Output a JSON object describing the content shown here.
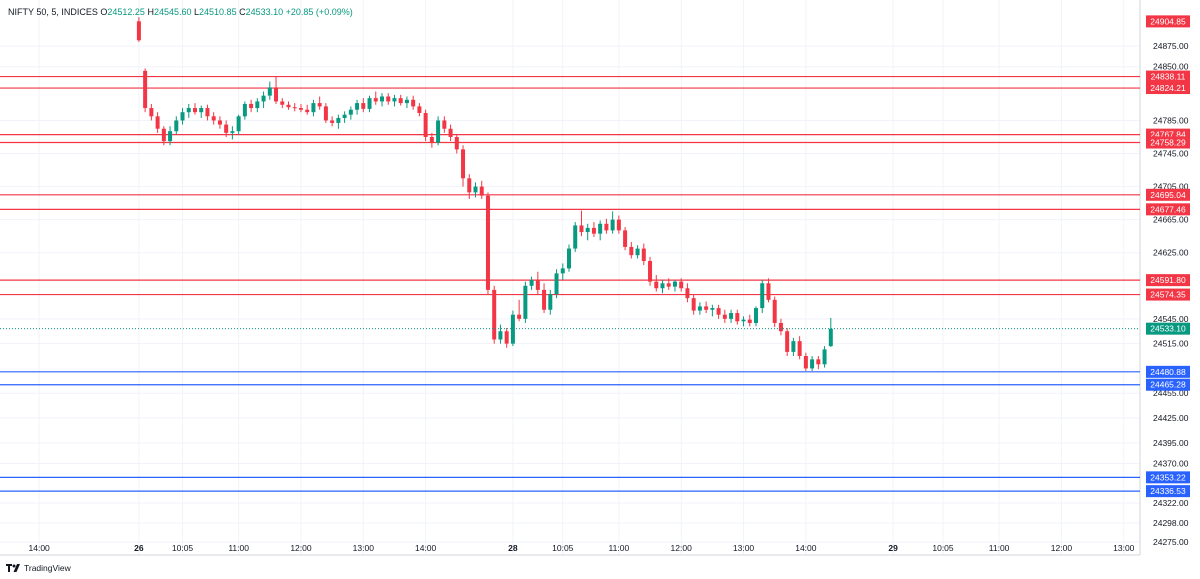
{
  "header": {
    "symbol": "NIFTY 50, 5, INDICES",
    "open_label": "O",
    "open": "24512.25",
    "high_label": "H",
    "high": "24545.60",
    "low_label": "L",
    "low": "24510.85",
    "close_label": "C",
    "close": "24533.10",
    "change": "+20.85 (+0.09%)"
  },
  "footer": {
    "brand": "TradingView",
    "logo_icon": "tradingview-logo-icon"
  },
  "colors": {
    "up": "#089981",
    "down": "#f23645",
    "resistance": "#f23645",
    "support": "#2962ff",
    "grid": "#f0f3fa",
    "axis_text": "#131722",
    "price_line": "#089981"
  },
  "chart_data": {
    "type": "candlestick",
    "ylim": [
      24275,
      24915
    ],
    "xlim": [
      0,
      180
    ],
    "y_ticks": [
      24875,
      24850,
      24785,
      24745,
      24705,
      24665,
      24625,
      24545,
      24515,
      24455,
      24425,
      24395,
      24370,
      24322,
      24298,
      24275
    ],
    "x_ticks": [
      {
        "i": 5,
        "label": "14:00"
      },
      {
        "i": 21,
        "label": "26"
      },
      {
        "i": 28,
        "label": "10:05"
      },
      {
        "i": 37,
        "label": "11:00"
      },
      {
        "i": 47,
        "label": "12:00"
      },
      {
        "i": 57,
        "label": "13:00"
      },
      {
        "i": 67,
        "label": "14:00"
      },
      {
        "i": 81,
        "label": "28"
      },
      {
        "i": 89,
        "label": "10:05"
      },
      {
        "i": 98,
        "label": "11:00"
      },
      {
        "i": 108,
        "label": "12:00"
      },
      {
        "i": 118,
        "label": "13:00"
      },
      {
        "i": 128,
        "label": "14:00"
      },
      {
        "i": 142,
        "label": "29"
      },
      {
        "i": 150,
        "label": "10:05"
      },
      {
        "i": 159,
        "label": "11:00"
      },
      {
        "i": 169,
        "label": "12:00"
      },
      {
        "i": 179,
        "label": "13:00"
      }
    ],
    "levels": [
      {
        "value": 24838.11,
        "label": "24838.11",
        "kind": "resistance"
      },
      {
        "value": 24824.21,
        "label": "24824.21",
        "kind": "resistance"
      },
      {
        "value": 24767.84,
        "label": "24767.84",
        "kind": "resistance"
      },
      {
        "value": 24758.29,
        "label": "24758.29",
        "kind": "resistance"
      },
      {
        "value": 24695.04,
        "label": "24695.04",
        "kind": "resistance"
      },
      {
        "value": 24677.46,
        "label": "24677.46",
        "kind": "resistance"
      },
      {
        "value": 24591.8,
        "label": "24591.80",
        "kind": "resistance"
      },
      {
        "value": 24574.35,
        "label": "24574.35",
        "kind": "resistance"
      },
      {
        "value": 24480.88,
        "label": "24480.88",
        "kind": "support"
      },
      {
        "value": 24465.28,
        "label": "24465.28",
        "kind": "support"
      },
      {
        "value": 24353.22,
        "label": "24353.22",
        "kind": "support"
      },
      {
        "value": 24336.53,
        "label": "24336.53",
        "kind": "support"
      }
    ],
    "top_label": {
      "value": 24904.85,
      "label": "24904.85"
    },
    "last_price": {
      "value": 24533.1,
      "label": "24533.10"
    },
    "candles": [
      {
        "i": 21,
        "o": 24905,
        "h": 24910,
        "l": 24880,
        "c": 24882
      },
      {
        "i": 22,
        "o": 24845,
        "h": 24848,
        "l": 24795,
        "c": 24800
      },
      {
        "i": 23,
        "o": 24800,
        "h": 24805,
        "l": 24785,
        "c": 24790
      },
      {
        "i": 24,
        "o": 24790,
        "h": 24795,
        "l": 24770,
        "c": 24775
      },
      {
        "i": 25,
        "o": 24775,
        "h": 24778,
        "l": 24755,
        "c": 24760
      },
      {
        "i": 26,
        "o": 24760,
        "h": 24778,
        "l": 24755,
        "c": 24772
      },
      {
        "i": 27,
        "o": 24772,
        "h": 24790,
        "l": 24768,
        "c": 24785
      },
      {
        "i": 28,
        "o": 24785,
        "h": 24800,
        "l": 24780,
        "c": 24795
      },
      {
        "i": 29,
        "o": 24795,
        "h": 24805,
        "l": 24788,
        "c": 24800
      },
      {
        "i": 30,
        "o": 24800,
        "h": 24806,
        "l": 24792,
        "c": 24795
      },
      {
        "i": 31,
        "o": 24795,
        "h": 24803,
        "l": 24788,
        "c": 24800
      },
      {
        "i": 32,
        "o": 24800,
        "h": 24804,
        "l": 24785,
        "c": 24790
      },
      {
        "i": 33,
        "o": 24790,
        "h": 24795,
        "l": 24780,
        "c": 24785
      },
      {
        "i": 34,
        "o": 24785,
        "h": 24790,
        "l": 24775,
        "c": 24780
      },
      {
        "i": 35,
        "o": 24780,
        "h": 24785,
        "l": 24765,
        "c": 24770
      },
      {
        "i": 36,
        "o": 24770,
        "h": 24778,
        "l": 24762,
        "c": 24772
      },
      {
        "i": 37,
        "o": 24772,
        "h": 24792,
        "l": 24768,
        "c": 24790
      },
      {
        "i": 38,
        "o": 24790,
        "h": 24808,
        "l": 24786,
        "c": 24805
      },
      {
        "i": 39,
        "o": 24805,
        "h": 24810,
        "l": 24795,
        "c": 24800
      },
      {
        "i": 40,
        "o": 24800,
        "h": 24812,
        "l": 24795,
        "c": 24808
      },
      {
        "i": 41,
        "o": 24808,
        "h": 24820,
        "l": 24800,
        "c": 24815
      },
      {
        "i": 42,
        "o": 24815,
        "h": 24832,
        "l": 24810,
        "c": 24825
      },
      {
        "i": 43,
        "o": 24825,
        "h": 24838,
        "l": 24805,
        "c": 24808
      },
      {
        "i": 44,
        "o": 24808,
        "h": 24812,
        "l": 24800,
        "c": 24804
      },
      {
        "i": 45,
        "o": 24804,
        "h": 24808,
        "l": 24798,
        "c": 24801
      },
      {
        "i": 46,
        "o": 24801,
        "h": 24806,
        "l": 24796,
        "c": 24800
      },
      {
        "i": 47,
        "o": 24800,
        "h": 24805,
        "l": 24795,
        "c": 24798
      },
      {
        "i": 48,
        "o": 24798,
        "h": 24804,
        "l": 24792,
        "c": 24795
      },
      {
        "i": 49,
        "o": 24795,
        "h": 24810,
        "l": 24790,
        "c": 24806
      },
      {
        "i": 50,
        "o": 24806,
        "h": 24814,
        "l": 24798,
        "c": 24802
      },
      {
        "i": 51,
        "o": 24802,
        "h": 24806,
        "l": 24782,
        "c": 24785
      },
      {
        "i": 52,
        "o": 24785,
        "h": 24790,
        "l": 24778,
        "c": 24782
      },
      {
        "i": 53,
        "o": 24782,
        "h": 24792,
        "l": 24775,
        "c": 24788
      },
      {
        "i": 54,
        "o": 24788,
        "h": 24796,
        "l": 24782,
        "c": 24792
      },
      {
        "i": 55,
        "o": 24792,
        "h": 24802,
        "l": 24786,
        "c": 24798
      },
      {
        "i": 56,
        "o": 24798,
        "h": 24810,
        "l": 24792,
        "c": 24806
      },
      {
        "i": 57,
        "o": 24806,
        "h": 24812,
        "l": 24795,
        "c": 24799
      },
      {
        "i": 58,
        "o": 24799,
        "h": 24815,
        "l": 24795,
        "c": 24812
      },
      {
        "i": 59,
        "o": 24812,
        "h": 24820,
        "l": 24804,
        "c": 24808
      },
      {
        "i": 60,
        "o": 24808,
        "h": 24818,
        "l": 24802,
        "c": 24814
      },
      {
        "i": 61,
        "o": 24814,
        "h": 24818,
        "l": 24804,
        "c": 24808
      },
      {
        "i": 62,
        "o": 24808,
        "h": 24816,
        "l": 24802,
        "c": 24812
      },
      {
        "i": 63,
        "o": 24812,
        "h": 24816,
        "l": 24803,
        "c": 24806
      },
      {
        "i": 64,
        "o": 24806,
        "h": 24814,
        "l": 24800,
        "c": 24810
      },
      {
        "i": 65,
        "o": 24810,
        "h": 24815,
        "l": 24798,
        "c": 24802
      },
      {
        "i": 66,
        "o": 24802,
        "h": 24806,
        "l": 24790,
        "c": 24794
      },
      {
        "i": 67,
        "o": 24794,
        "h": 24798,
        "l": 24760,
        "c": 24765
      },
      {
        "i": 68,
        "o": 24765,
        "h": 24770,
        "l": 24752,
        "c": 24758
      },
      {
        "i": 69,
        "o": 24758,
        "h": 24790,
        "l": 24755,
        "c": 24785
      },
      {
        "i": 70,
        "o": 24785,
        "h": 24790,
        "l": 24770,
        "c": 24775
      },
      {
        "i": 71,
        "o": 24775,
        "h": 24780,
        "l": 24760,
        "c": 24765
      },
      {
        "i": 72,
        "o": 24765,
        "h": 24768,
        "l": 24745,
        "c": 24750
      },
      {
        "i": 73,
        "o": 24750,
        "h": 24755,
        "l": 24705,
        "c": 24715
      },
      {
        "i": 74,
        "o": 24715,
        "h": 24720,
        "l": 24690,
        "c": 24698
      },
      {
        "i": 75,
        "o": 24698,
        "h": 24710,
        "l": 24692,
        "c": 24705
      },
      {
        "i": 76,
        "o": 24705,
        "h": 24712,
        "l": 24690,
        "c": 24694
      },
      {
        "i": 77,
        "o": 24694,
        "h": 24698,
        "l": 24575,
        "c": 24580
      },
      {
        "i": 78,
        "o": 24580,
        "h": 24585,
        "l": 24515,
        "c": 24520
      },
      {
        "i": 79,
        "o": 24520,
        "h": 24538,
        "l": 24515,
        "c": 24530
      },
      {
        "i": 80,
        "o": 24530,
        "h": 24534,
        "l": 24510,
        "c": 24515
      },
      {
        "i": 81,
        "o": 24515,
        "h": 24555,
        "l": 24512,
        "c": 24550
      },
      {
        "i": 82,
        "o": 24550,
        "h": 24568,
        "l": 24542,
        "c": 24545
      },
      {
        "i": 83,
        "o": 24545,
        "h": 24590,
        "l": 24540,
        "c": 24585
      },
      {
        "i": 84,
        "o": 24585,
        "h": 24596,
        "l": 24580,
        "c": 24592
      },
      {
        "i": 85,
        "o": 24592,
        "h": 24602,
        "l": 24575,
        "c": 24580
      },
      {
        "i": 86,
        "o": 24580,
        "h": 24588,
        "l": 24552,
        "c": 24556
      },
      {
        "i": 87,
        "o": 24556,
        "h": 24580,
        "l": 24550,
        "c": 24575
      },
      {
        "i": 88,
        "o": 24575,
        "h": 24605,
        "l": 24570,
        "c": 24600
      },
      {
        "i": 89,
        "o": 24600,
        "h": 24612,
        "l": 24592,
        "c": 24606
      },
      {
        "i": 90,
        "o": 24606,
        "h": 24635,
        "l": 24602,
        "c": 24630
      },
      {
        "i": 91,
        "o": 24630,
        "h": 24662,
        "l": 24626,
        "c": 24658
      },
      {
        "i": 92,
        "o": 24658,
        "h": 24676,
        "l": 24645,
        "c": 24650
      },
      {
        "i": 93,
        "o": 24650,
        "h": 24660,
        "l": 24640,
        "c": 24655
      },
      {
        "i": 94,
        "o": 24655,
        "h": 24662,
        "l": 24644,
        "c": 24648
      },
      {
        "i": 95,
        "o": 24648,
        "h": 24664,
        "l": 24640,
        "c": 24660
      },
      {
        "i": 96,
        "o": 24660,
        "h": 24666,
        "l": 24648,
        "c": 24652
      },
      {
        "i": 97,
        "o": 24652,
        "h": 24675,
        "l": 24648,
        "c": 24665
      },
      {
        "i": 98,
        "o": 24665,
        "h": 24670,
        "l": 24648,
        "c": 24652
      },
      {
        "i": 99,
        "o": 24652,
        "h": 24656,
        "l": 24628,
        "c": 24632
      },
      {
        "i": 100,
        "o": 24632,
        "h": 24638,
        "l": 24618,
        "c": 24622
      },
      {
        "i": 101,
        "o": 24622,
        "h": 24634,
        "l": 24618,
        "c": 24630
      },
      {
        "i": 102,
        "o": 24630,
        "h": 24636,
        "l": 24610,
        "c": 24615
      },
      {
        "i": 103,
        "o": 24615,
        "h": 24620,
        "l": 24585,
        "c": 24590
      },
      {
        "i": 104,
        "o": 24590,
        "h": 24598,
        "l": 24578,
        "c": 24582
      },
      {
        "i": 105,
        "o": 24582,
        "h": 24592,
        "l": 24576,
        "c": 24588
      },
      {
        "i": 106,
        "o": 24588,
        "h": 24594,
        "l": 24580,
        "c": 24584
      },
      {
        "i": 107,
        "o": 24584,
        "h": 24592,
        "l": 24578,
        "c": 24590
      },
      {
        "i": 108,
        "o": 24590,
        "h": 24594,
        "l": 24578,
        "c": 24582
      },
      {
        "i": 109,
        "o": 24582,
        "h": 24588,
        "l": 24565,
        "c": 24570
      },
      {
        "i": 110,
        "o": 24570,
        "h": 24575,
        "l": 24550,
        "c": 24555
      },
      {
        "i": 111,
        "o": 24555,
        "h": 24565,
        "l": 24550,
        "c": 24560
      },
      {
        "i": 112,
        "o": 24560,
        "h": 24566,
        "l": 24552,
        "c": 24556
      },
      {
        "i": 113,
        "o": 24556,
        "h": 24562,
        "l": 24548,
        "c": 24558
      },
      {
        "i": 114,
        "o": 24558,
        "h": 24562,
        "l": 24545,
        "c": 24550
      },
      {
        "i": 115,
        "o": 24550,
        "h": 24556,
        "l": 24540,
        "c": 24545
      },
      {
        "i": 116,
        "o": 24545,
        "h": 24556,
        "l": 24540,
        "c": 24552
      },
      {
        "i": 117,
        "o": 24552,
        "h": 24556,
        "l": 24538,
        "c": 24542
      },
      {
        "i": 118,
        "o": 24542,
        "h": 24548,
        "l": 24536,
        "c": 24544
      },
      {
        "i": 119,
        "o": 24544,
        "h": 24550,
        "l": 24536,
        "c": 24540
      },
      {
        "i": 120,
        "o": 24540,
        "h": 24560,
        "l": 24536,
        "c": 24558
      },
      {
        "i": 121,
        "o": 24558,
        "h": 24592,
        "l": 24552,
        "c": 24588
      },
      {
        "i": 122,
        "o": 24588,
        "h": 24594,
        "l": 24565,
        "c": 24568
      },
      {
        "i": 123,
        "o": 24568,
        "h": 24572,
        "l": 24535,
        "c": 24540
      },
      {
        "i": 124,
        "o": 24540,
        "h": 24545,
        "l": 24525,
        "c": 24530
      },
      {
        "i": 125,
        "o": 24530,
        "h": 24534,
        "l": 24500,
        "c": 24505
      },
      {
        "i": 126,
        "o": 24505,
        "h": 24522,
        "l": 24500,
        "c": 24518
      },
      {
        "i": 127,
        "o": 24518,
        "h": 24524,
        "l": 24496,
        "c": 24500
      },
      {
        "i": 128,
        "o": 24500,
        "h": 24504,
        "l": 24482,
        "c": 24485
      },
      {
        "i": 129,
        "o": 24485,
        "h": 24500,
        "l": 24482,
        "c": 24496
      },
      {
        "i": 130,
        "o": 24496,
        "h": 24500,
        "l": 24484,
        "c": 24490
      },
      {
        "i": 131,
        "o": 24490,
        "h": 24512,
        "l": 24486,
        "c": 24508
      },
      {
        "i": 132,
        "o": 24512,
        "h": 24546,
        "l": 24511,
        "c": 24533
      }
    ]
  }
}
